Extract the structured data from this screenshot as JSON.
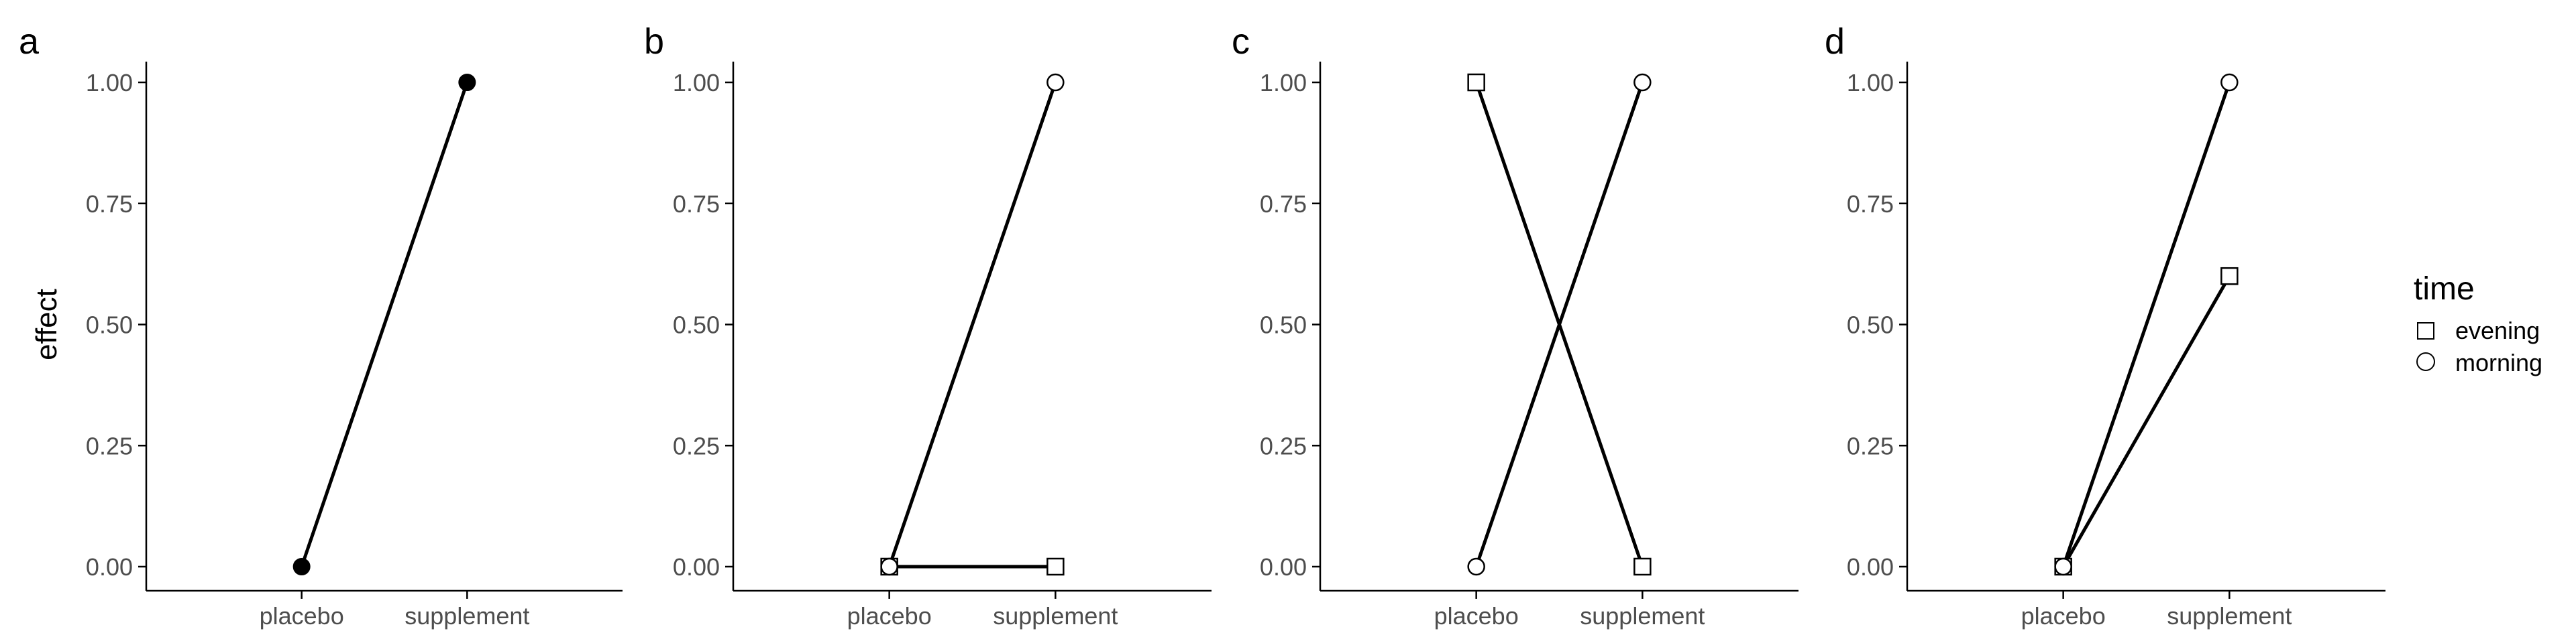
{
  "chart_data": [
    {
      "type": "line",
      "panel": "a",
      "categories": [
        "placebo",
        "supplement"
      ],
      "ylabel": "effect",
      "ylim": [
        0,
        1
      ],
      "yticks": [
        "0.00",
        "0.25",
        "0.50",
        "0.75",
        "1.00"
      ],
      "series": [
        {
          "values": [
            0,
            1
          ],
          "marker": "filled-circle"
        }
      ]
    },
    {
      "type": "line",
      "panel": "b",
      "categories": [
        "placebo",
        "supplement"
      ],
      "ylabel": "",
      "ylim": [
        0,
        1
      ],
      "yticks": [
        "0.00",
        "0.25",
        "0.50",
        "0.75",
        "1.00"
      ],
      "series": [
        {
          "name": "evening",
          "values": [
            0,
            0
          ],
          "marker": "square"
        },
        {
          "name": "morning",
          "values": [
            0,
            1
          ],
          "marker": "circle"
        }
      ]
    },
    {
      "type": "line",
      "panel": "c",
      "categories": [
        "placebo",
        "supplement"
      ],
      "ylabel": "",
      "ylim": [
        0,
        1
      ],
      "yticks": [
        "0.00",
        "0.25",
        "0.50",
        "0.75",
        "1.00"
      ],
      "series": [
        {
          "name": "evening",
          "values": [
            1,
            0
          ],
          "marker": "square"
        },
        {
          "name": "morning",
          "values": [
            0,
            1
          ],
          "marker": "circle"
        }
      ]
    },
    {
      "type": "line",
      "panel": "d",
      "categories": [
        "placebo",
        "supplement"
      ],
      "ylabel": "",
      "ylim": [
        0,
        1
      ],
      "yticks": [
        "0.00",
        "0.25",
        "0.50",
        "0.75",
        "1.00"
      ],
      "series": [
        {
          "name": "evening",
          "values": [
            0,
            0.6
          ],
          "marker": "square"
        },
        {
          "name": "morning",
          "values": [
            0,
            1
          ],
          "marker": "circle"
        }
      ]
    }
  ],
  "legend": {
    "title": "time",
    "placement": "right",
    "items": [
      {
        "label": "evening",
        "marker": "square"
      },
      {
        "label": "morning",
        "marker": "circle"
      }
    ]
  },
  "colors": {
    "line": "#000000",
    "axis": "#000000",
    "tick_text": "#4d4d4d",
    "marker_fill_filled": "#000000",
    "marker_fill_open": "#ffffff",
    "background": "#ffffff"
  }
}
